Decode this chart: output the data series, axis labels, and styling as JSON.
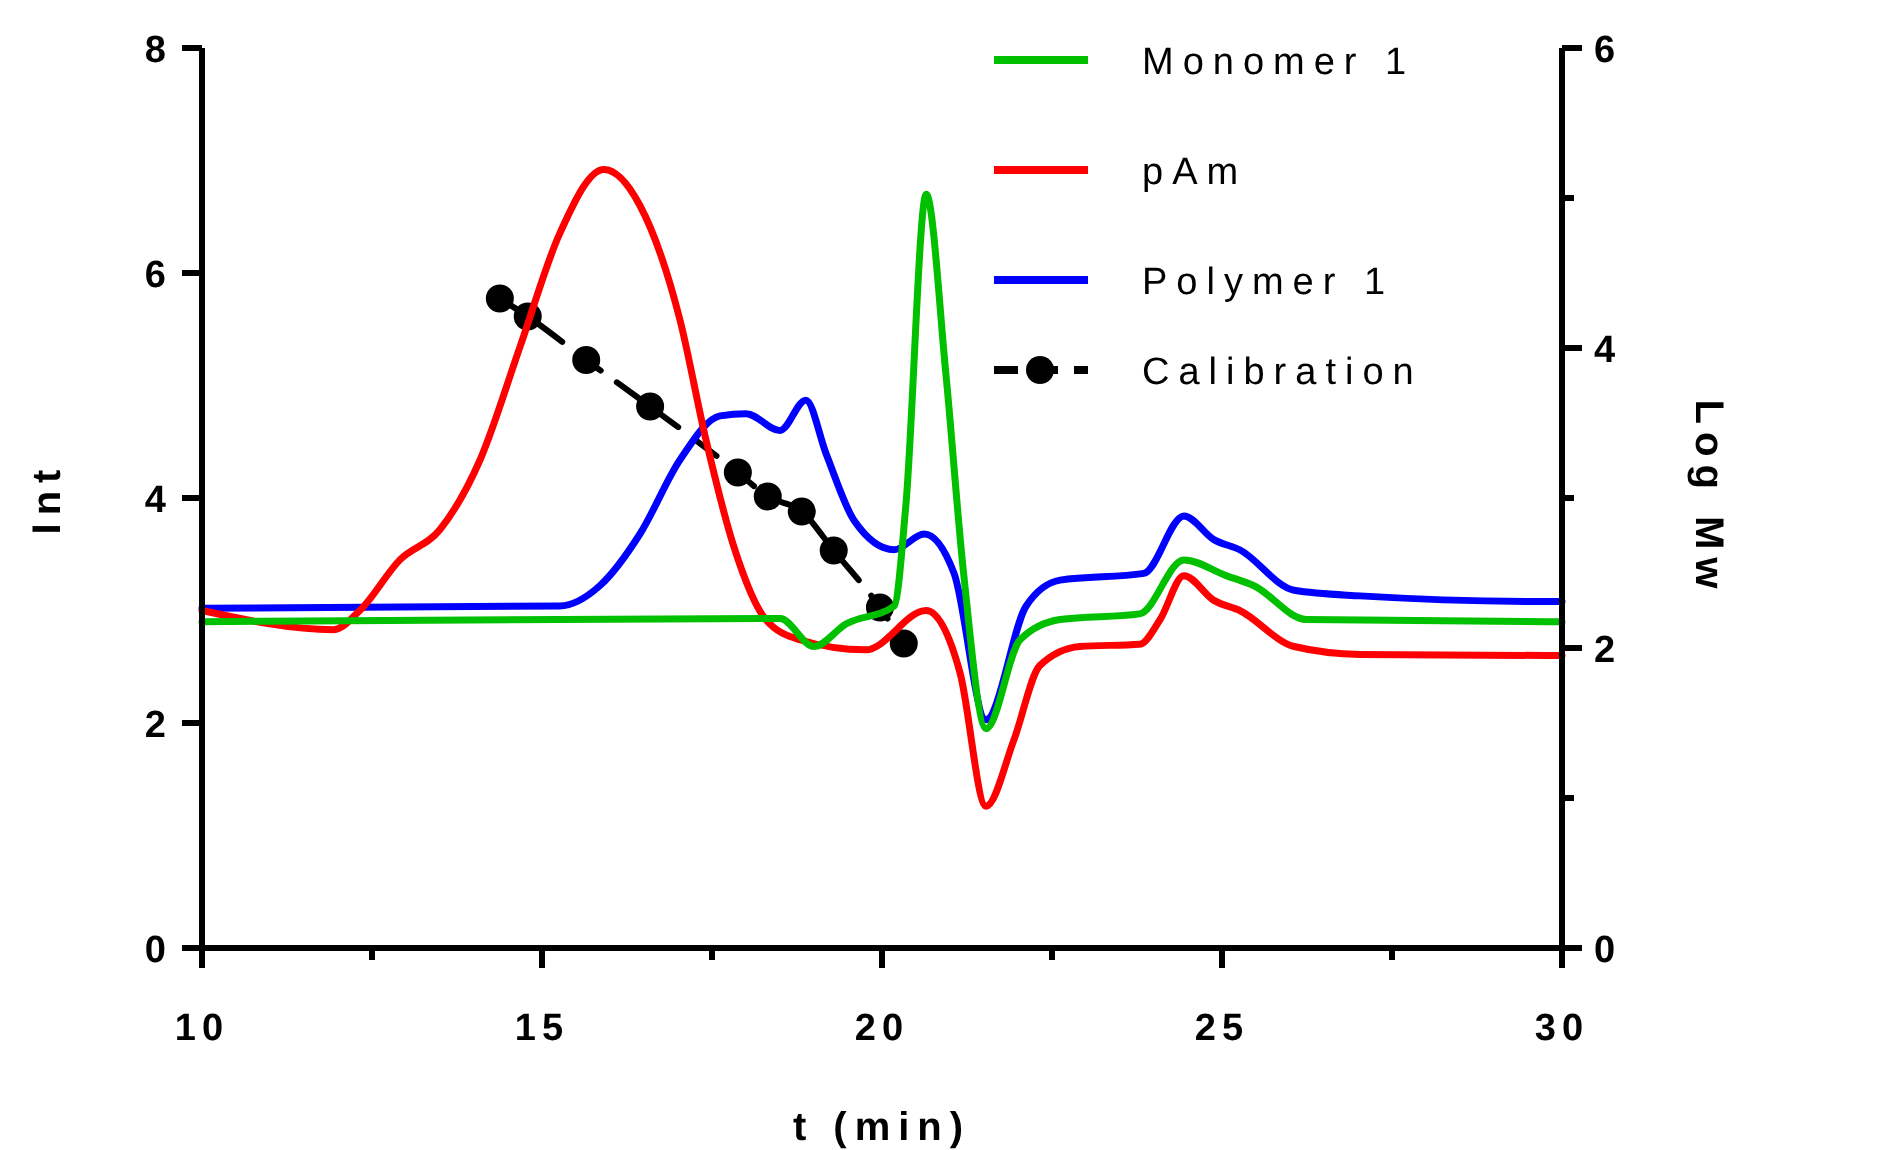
{
  "chart_data": {
    "type": "line",
    "xlabel": "t (min)",
    "ylabel": "Int",
    "y2label": "Log Mw",
    "xlim": [
      10,
      30
    ],
    "xticks": [
      10,
      {
        "value": 12.5,
        "label": null
      },
      15,
      {
        "value": 17.5,
        "label": null
      },
      20,
      {
        "value": 22.5,
        "label": null
      },
      25,
      {
        "value": 27.5,
        "label": null
      },
      30
    ],
    "ylim": [
      0,
      8
    ],
    "yticks": [
      0,
      2,
      4,
      6,
      8
    ],
    "y2lim": [
      0,
      6
    ],
    "y2ticks": [
      0,
      {
        "value": 1,
        "label": null
      },
      2,
      {
        "value": 3,
        "label": null
      },
      4,
      {
        "value": 5,
        "label": null
      },
      6
    ],
    "legend": "top right",
    "grid": false,
    "series": [
      {
        "name": "Monomer 1",
        "color": "#00c000",
        "x": [
          10,
          18.5,
          19.0,
          19.47,
          20.18,
          20.35,
          20.65,
          20.94,
          21.2,
          21.53,
          22.03,
          22.62,
          23.79,
          24.44,
          25.06,
          25.47,
          26.24,
          29.76,
          30
        ],
        "values": [
          2.9,
          2.93,
          2.68,
          2.88,
          3.04,
          3.93,
          6.7,
          5.1,
          3.33,
          1.95,
          2.74,
          2.92,
          2.97,
          3.45,
          3.31,
          3.22,
          2.92,
          2.9,
          2.9
        ]
      },
      {
        "name": "pAm",
        "color": "#ff0000",
        "x": [
          10,
          11.94,
          12.32,
          12.91,
          13.5,
          14.09,
          14.68,
          15.26,
          15.91,
          16.44,
          17.03,
          17.41,
          17.82,
          18.29,
          18.79,
          19.76,
          20.65,
          21.15,
          21.53,
          21.94,
          22.32,
          22.91,
          23.79,
          24.09,
          24.44,
          24.88,
          25.26,
          26.06,
          27.03,
          29.76,
          30
        ],
        "values": [
          3.0,
          2.83,
          3.0,
          3.45,
          3.72,
          4.34,
          5.35,
          6.35,
          6.92,
          6.6,
          5.58,
          4.52,
          3.57,
          2.92,
          2.74,
          2.65,
          3.0,
          2.44,
          1.26,
          1.85,
          2.51,
          2.68,
          2.7,
          2.92,
          3.31,
          3.09,
          3.0,
          2.68,
          2.61,
          2.6,
          2.6
        ]
      },
      {
        "name": "Polymer 1",
        "color": "#0000ff",
        "x": [
          10,
          15.26,
          15.85,
          16.44,
          17.03,
          17.62,
          18.0,
          18.5,
          18.88,
          19.18,
          19.59,
          20.18,
          20.62,
          21.06,
          21.53,
          22.12,
          22.62,
          23.85,
          24.44,
          24.88,
          25.26,
          26.06,
          27.03,
          29.76,
          30
        ],
        "values": [
          3.02,
          3.04,
          3.22,
          3.68,
          4.34,
          4.73,
          4.75,
          4.6,
          4.87,
          4.39,
          3.8,
          3.54,
          3.68,
          3.33,
          2.03,
          3.04,
          3.27,
          3.33,
          3.84,
          3.63,
          3.54,
          3.18,
          3.13,
          3.08,
          3.08
        ]
      },
      {
        "name": "Calibration",
        "color": "#000000",
        "axis": "y2",
        "marker": "circle",
        "line_style": "dashed",
        "x": [
          14.38,
          14.79,
          15.65,
          16.59,
          17.88,
          18.32,
          18.82,
          19.29,
          19.97,
          20.32
        ],
        "values": [
          4.33,
          4.21,
          3.92,
          3.61,
          3.17,
          3.01,
          2.91,
          2.65,
          2.27,
          2.03
        ]
      }
    ]
  }
}
